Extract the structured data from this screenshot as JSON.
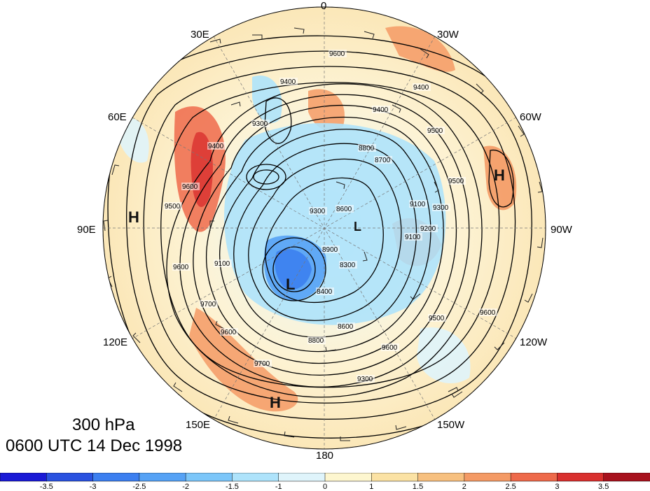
{
  "title": {
    "level": "300 hPa",
    "datetime": "0600 UTC 14 Dec 1998"
  },
  "longitude_labels": {
    "lon0": "0",
    "lon30w": "30W",
    "lon60w": "60W",
    "lon90w": "90W",
    "lon120w": "120W",
    "lon150w": "150W",
    "lon180": "180",
    "lon150e": "150E",
    "lon120e": "120E",
    "lon90e": "90E",
    "lon60e": "60E",
    "lon30e": "30E"
  },
  "pressure_centers": {
    "high_east_pacific": "H",
    "high_asia": "H",
    "high_atlantic": "H",
    "low_siberia": "L",
    "low_arctic": "L"
  },
  "contour_labels": [
    "9600",
    "9400",
    "9500",
    "9400",
    "9300",
    "9400",
    "9600",
    "8800",
    "8700",
    "8600",
    "9500",
    "9300",
    "9100",
    "9200",
    "8900",
    "9100",
    "8400",
    "8300",
    "8600",
    "8800",
    "9500",
    "9700",
    "9600",
    "9700",
    "9600",
    "9500",
    "9400",
    "9300",
    "9600",
    "9600",
    "9100",
    "9300"
  ],
  "colorbar": {
    "ticks": [
      "-3.5",
      "-3",
      "-2.5",
      "-2",
      "-1.5",
      "-1",
      "0",
      "1",
      "1.5",
      "2",
      "2.5",
      "3",
      "3.5"
    ],
    "colors": [
      "#1a1ad6",
      "#2a52e0",
      "#3c7ff0",
      "#56a2f5",
      "#7cc6f9",
      "#aee3fb",
      "#dff4fb",
      "#fdf6cf",
      "#fbe2a4",
      "#f7c07f",
      "#f49a65",
      "#ee6a4b",
      "#d9302e",
      "#a8121e"
    ]
  },
  "colors": {
    "contour": "#000000",
    "wind_barb": "#222222"
  }
}
